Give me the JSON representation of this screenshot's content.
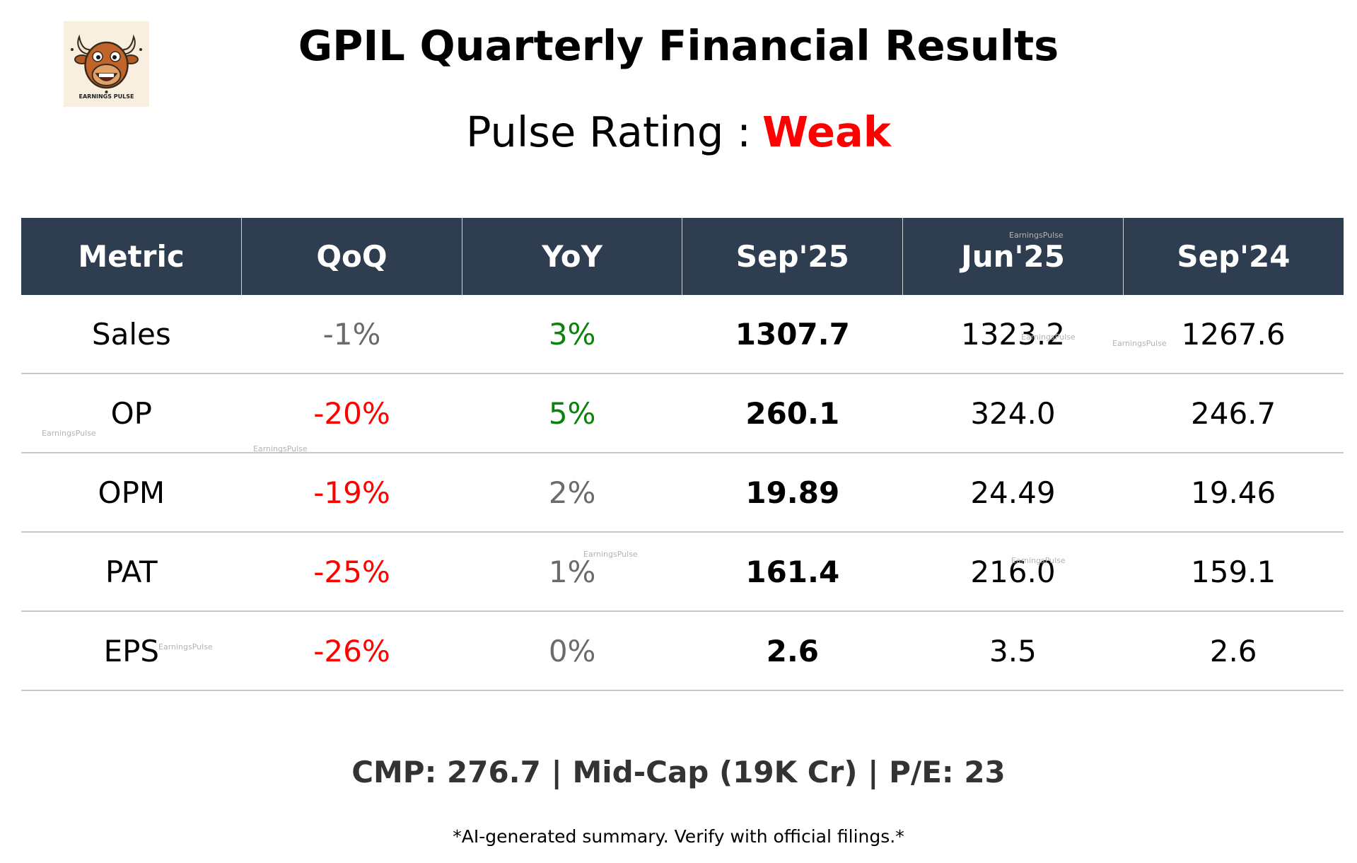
{
  "logo": {
    "text": "EARNINGS PULSE"
  },
  "title": "GPIL Quarterly Financial Results",
  "rating": {
    "label": "Pulse Rating :",
    "value": "Weak",
    "color": "#ff0000"
  },
  "table": {
    "headers": [
      "Metric",
      "QoQ",
      "YoY",
      "Sep'25",
      "Jun'25",
      "Sep'24"
    ],
    "rows": [
      {
        "metric": "Sales",
        "qoq": "-1%",
        "yoy": "3%",
        "sep25": "1307.7",
        "jun25": "1323.2",
        "sep24": "1267.6"
      },
      {
        "metric": "OP",
        "qoq": "-20%",
        "yoy": "5%",
        "sep25": "260.1",
        "jun25": "324.0",
        "sep24": "246.7"
      },
      {
        "metric": "OPM",
        "qoq": "-19%",
        "yoy": "2%",
        "sep25": "19.89",
        "jun25": "24.49",
        "sep24": "19.46"
      },
      {
        "metric": "PAT",
        "qoq": "-25%",
        "yoy": "1%",
        "sep25": "161.4",
        "jun25": "216.0",
        "sep24": "159.1"
      },
      {
        "metric": "EPS",
        "qoq": "-26%",
        "yoy": "0%",
        "sep25": "2.6",
        "jun25": "3.5",
        "sep24": "2.6"
      }
    ]
  },
  "footer": "CMP: 276.7 | Mid-Cap (19K Cr) | P/E: 23",
  "disclaimer": "*AI-generated summary. Verify with official filings.*",
  "watermark": "EarningsPulse",
  "colors": {
    "header_bg": "#2e3d50",
    "positive": "#0a830a",
    "negative": "#ff0000",
    "neutral": "#6b6b6b",
    "footer": "#333333"
  }
}
